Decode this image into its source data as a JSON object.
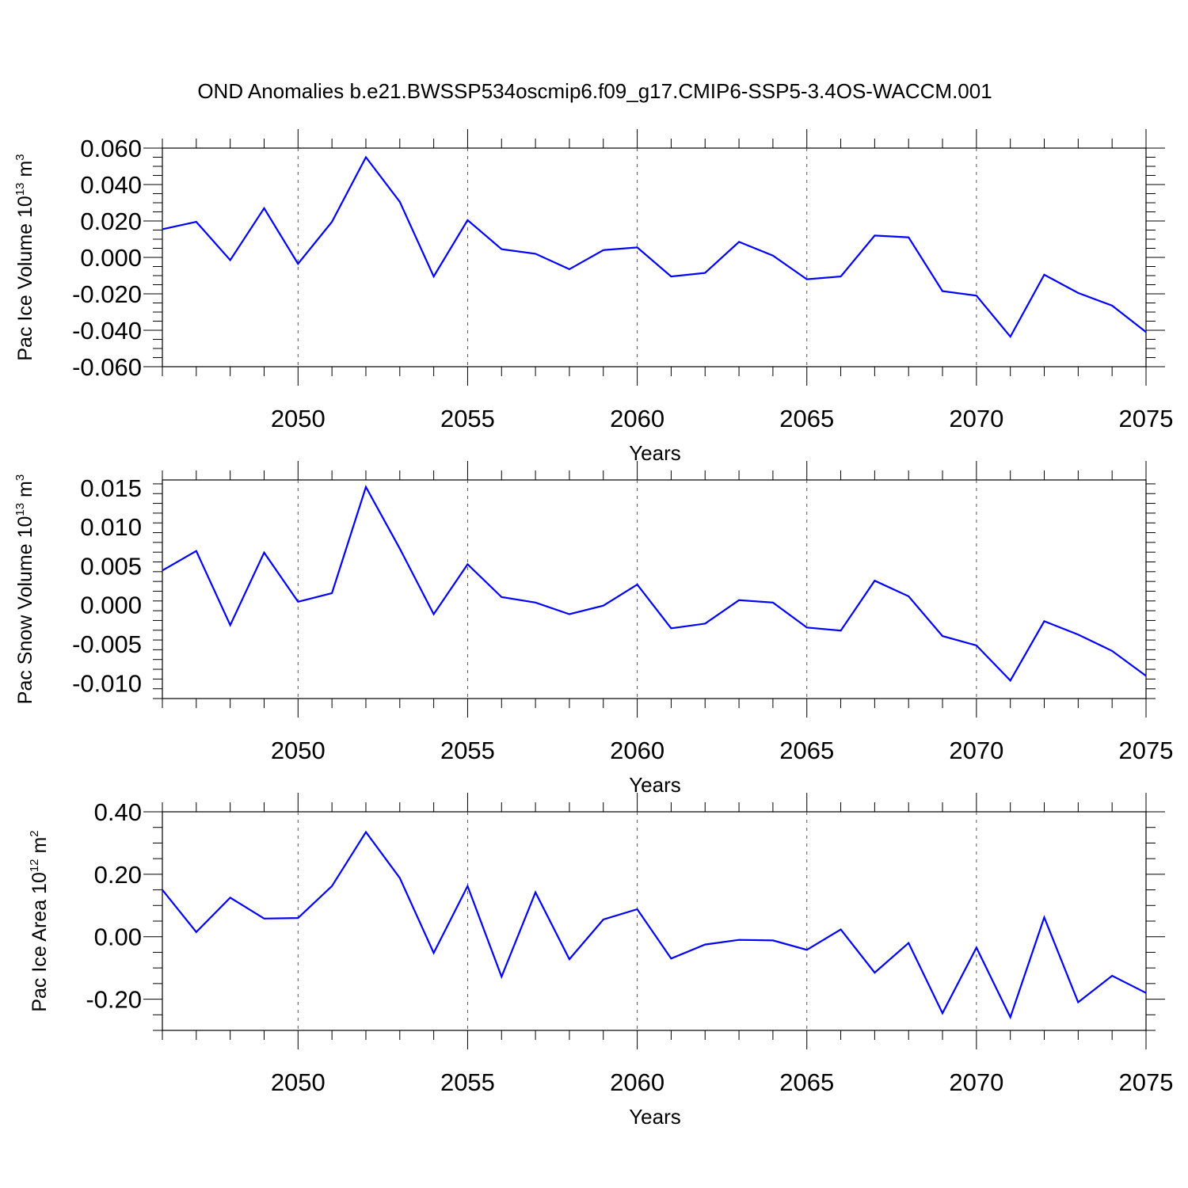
{
  "figure": {
    "title": "OND Anomalies b.e21.BWSSP534oscmip6.f09_g17.CMIP6-SSP5-3.4OS-WACCM.001"
  },
  "chart_data": [
    {
      "type": "line",
      "title": "",
      "xlabel": "Years",
      "ylabel": "Pac Ice Volume",
      "ylabel_unit_base": "10",
      "ylabel_unit_exp": "13",
      "ylabel_unit_dim": "m",
      "ylabel_unit_dim_exp": "3",
      "xlim": [
        2046,
        2075
      ],
      "ylim": [
        -0.06,
        0.06
      ],
      "yticks": [
        -0.06,
        -0.04,
        -0.02,
        0.0,
        0.02,
        0.04,
        0.06
      ],
      "ytick_labels": [
        "-0.060",
        "-0.040",
        "-0.020",
        "0.000",
        "0.020",
        "0.040",
        "0.060"
      ],
      "xticks": [
        2050,
        2055,
        2060,
        2065,
        2070,
        2075
      ],
      "xtick_labels": [
        "2050",
        "2055",
        "2060",
        "2065",
        "2070",
        "2075"
      ],
      "grid": "vertical dashed at labeled years",
      "color": "#0000ff",
      "x": [
        2046,
        2047,
        2048,
        2049,
        2050,
        2051,
        2052,
        2053,
        2054,
        2055,
        2056,
        2057,
        2058,
        2059,
        2060,
        2061,
        2062,
        2063,
        2064,
        2065,
        2066,
        2067,
        2068,
        2069,
        2070,
        2071,
        2072,
        2073,
        2074,
        2075
      ],
      "values": [
        0.0155,
        0.0195,
        -0.0015,
        0.027,
        -0.0035,
        0.0195,
        0.055,
        0.0305,
        -0.0105,
        0.0205,
        0.0045,
        0.002,
        -0.0065,
        0.004,
        0.0055,
        -0.0105,
        -0.0085,
        0.0085,
        0.001,
        -0.012,
        -0.0105,
        0.012,
        0.011,
        -0.0185,
        -0.021,
        -0.0435,
        -0.0095,
        -0.0195,
        -0.0265,
        -0.041
      ]
    },
    {
      "type": "line",
      "title": "",
      "xlabel": "Years",
      "ylabel": "Pac Snow Volume",
      "ylabel_unit_base": "10",
      "ylabel_unit_exp": "13",
      "ylabel_unit_dim": "m",
      "ylabel_unit_dim_exp": "3",
      "xlim": [
        2046,
        2075
      ],
      "ylim": [
        -0.012,
        0.016
      ],
      "yticks": [
        -0.01,
        -0.005,
        0.0,
        0.005,
        0.01,
        0.015
      ],
      "ytick_labels": [
        "-0.010",
        "-0.005",
        "0.000",
        "0.005",
        "0.010",
        "0.015"
      ],
      "xticks": [
        2050,
        2055,
        2060,
        2065,
        2070,
        2075
      ],
      "xtick_labels": [
        "2050",
        "2055",
        "2060",
        "2065",
        "2070",
        "2075"
      ],
      "grid": "vertical dashed at labeled years",
      "color": "#0000ff",
      "x": [
        2046,
        2047,
        2048,
        2049,
        2050,
        2051,
        2052,
        2053,
        2054,
        2055,
        2056,
        2057,
        2058,
        2059,
        2060,
        2061,
        2062,
        2063,
        2064,
        2065,
        2066,
        2067,
        2068,
        2069,
        2070,
        2071,
        2072,
        2073,
        2074,
        2075
      ],
      "values": [
        0.0044,
        0.0069,
        -0.0026,
        0.0067,
        0.0004,
        0.0015,
        0.0151,
        0.0072,
        -0.0012,
        0.0052,
        0.001,
        0.0003,
        -0.0012,
        -0.0001,
        0.0026,
        -0.003,
        -0.0024,
        0.0006,
        0.0003,
        -0.0029,
        -0.0033,
        0.0031,
        0.0011,
        -0.004,
        -0.0052,
        -0.0097,
        -0.0021,
        -0.0038,
        -0.0059,
        -0.0091
      ]
    },
    {
      "type": "line",
      "title": "",
      "xlabel": "Years",
      "ylabel": "Pac Ice Area",
      "ylabel_unit_base": "10",
      "ylabel_unit_exp": "12",
      "ylabel_unit_dim": "m",
      "ylabel_unit_dim_exp": "2",
      "xlim": [
        2046,
        2075
      ],
      "ylim": [
        -0.3,
        0.4
      ],
      "yticks": [
        -0.2,
        0.0,
        0.2,
        0.4
      ],
      "ytick_labels": [
        "-0.20",
        "0.00",
        "0.20",
        "0.40"
      ],
      "xticks": [
        2050,
        2055,
        2060,
        2065,
        2070,
        2075
      ],
      "xtick_labels": [
        "2050",
        "2055",
        "2060",
        "2065",
        "2070",
        "2075"
      ],
      "grid": "vertical dashed at labeled years",
      "color": "#0000ff",
      "x": [
        2046,
        2047,
        2048,
        2049,
        2050,
        2051,
        2052,
        2053,
        2054,
        2055,
        2056,
        2057,
        2058,
        2059,
        2060,
        2061,
        2062,
        2063,
        2064,
        2065,
        2066,
        2067,
        2068,
        2069,
        2070,
        2071,
        2072,
        2073,
        2074,
        2075
      ],
      "values": [
        0.15,
        0.015,
        0.125,
        0.058,
        0.06,
        0.162,
        0.335,
        0.188,
        -0.052,
        0.162,
        -0.128,
        0.142,
        -0.072,
        0.055,
        0.088,
        -0.07,
        -0.025,
        -0.01,
        -0.012,
        -0.042,
        0.023,
        -0.115,
        -0.02,
        -0.245,
        -0.035,
        -0.258,
        0.062,
        -0.21,
        -0.125,
        -0.18
      ]
    }
  ]
}
